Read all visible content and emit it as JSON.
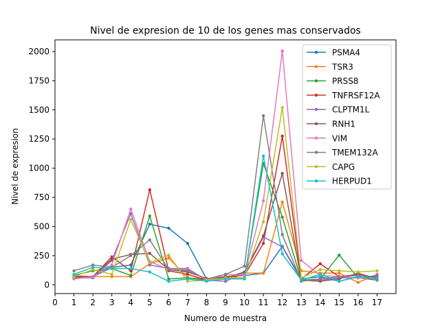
{
  "chart_data": {
    "type": "line",
    "title": "Nivel de expresion de 10 de los genes mas conservados",
    "xlabel": "Numero de muestra",
    "ylabel": "Nivel de expresion",
    "xlim": [
      0,
      18
    ],
    "ylim": [
      -75,
      2100
    ],
    "x_ticks": [
      "0",
      "1",
      "2",
      "3",
      "4",
      "5",
      "6",
      "7",
      "8",
      "9",
      "10",
      "11",
      "12",
      "13",
      "14",
      "15",
      "16",
      "17"
    ],
    "y_ticks": [
      "0",
      "250",
      "500",
      "750",
      "1000",
      "1250",
      "1500",
      "1750",
      "2000"
    ],
    "legend_position": "upper right",
    "x": [
      1,
      2,
      3,
      4,
      5,
      6,
      7,
      8,
      9,
      10,
      11,
      12,
      13,
      14,
      15,
      16,
      17
    ],
    "series": [
      {
        "name": "PSMA4",
        "color": "#1f77b4",
        "values": [
          70,
          70,
          150,
          170,
          520,
          485,
          355,
          50,
          70,
          80,
          100,
          330,
          50,
          70,
          30,
          70,
          70
        ]
      },
      {
        "name": "TSR3",
        "color": "#ff7f0e",
        "values": [
          80,
          70,
          70,
          70,
          180,
          230,
          60,
          50,
          50,
          100,
          100,
          710,
          120,
          100,
          100,
          20,
          90
        ]
      },
      {
        "name": "PRSS8",
        "color": "#2ca02c",
        "values": [
          80,
          120,
          140,
          80,
          590,
          50,
          60,
          40,
          60,
          60,
          1040,
          580,
          40,
          50,
          255,
          60,
          40
        ]
      },
      {
        "name": "TNFRSF12A",
        "color": "#d62728",
        "values": [
          60,
          70,
          240,
          120,
          815,
          120,
          90,
          40,
          70,
          80,
          355,
          1275,
          50,
          180,
          70,
          90,
          60
        ]
      },
      {
        "name": "CLPTM1L",
        "color": "#9467bd",
        "values": [
          60,
          60,
          210,
          610,
          170,
          140,
          140,
          40,
          30,
          100,
          410,
          325,
          40,
          40,
          60,
          60,
          80
        ]
      },
      {
        "name": "RNH1",
        "color": "#8c564b",
        "values": [
          70,
          70,
          220,
          260,
          270,
          130,
          110,
          55,
          60,
          110,
          420,
          955,
          40,
          30,
          50,
          100,
          50
        ]
      },
      {
        "name": "VIM",
        "color": "#e377c2",
        "values": [
          50,
          70,
          170,
          650,
          200,
          130,
          130,
          40,
          90,
          80,
          720,
          2005,
          210,
          80,
          70,
          60,
          50
        ]
      },
      {
        "name": "TMEM132A",
        "color": "#7f7f7f",
        "values": [
          120,
          170,
          150,
          250,
          385,
          130,
          120,
          50,
          90,
          160,
          1450,
          430,
          30,
          50,
          70,
          80,
          40
        ]
      },
      {
        "name": "CAPG",
        "color": "#bcbd22",
        "values": [
          70,
          130,
          90,
          560,
          190,
          255,
          30,
          40,
          60,
          60,
          540,
          1520,
          60,
          130,
          120,
          110,
          120
        ]
      },
      {
        "name": "HERPUD1",
        "color": "#17becf",
        "values": [
          90,
          150,
          140,
          140,
          110,
          30,
          50,
          30,
          50,
          50,
          1105,
          265,
          40,
          90,
          30,
          70,
          60
        ]
      }
    ]
  }
}
